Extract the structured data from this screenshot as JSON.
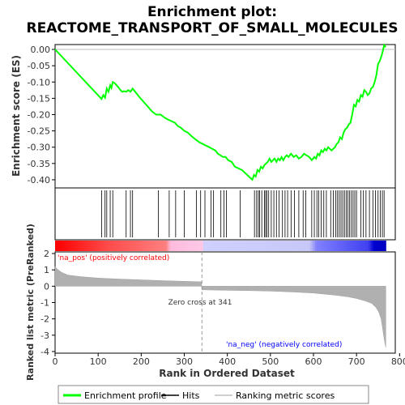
{
  "chart_data": {
    "type": "line",
    "title_line1": "Enrichment plot:",
    "title_line2": "REACTOME_TRANSPORT_OF_SMALL_MOLECULES",
    "top_panel": {
      "ylabel": "Enrichment score (ES)",
      "ylim": [
        -0.425,
        0.015
      ],
      "yticks": [
        "0.00",
        "-0.05",
        "-0.10",
        "-0.15",
        "-0.20",
        "-0.25",
        "-0.30",
        "-0.35",
        "-0.40"
      ],
      "ytick_values": [
        0.0,
        -0.05,
        -0.1,
        -0.15,
        -0.2,
        -0.25,
        -0.3,
        -0.35,
        -0.4
      ],
      "series": {
        "name": "Enrichment profile",
        "color": "#00ff00",
        "x": [
          0,
          108,
          112,
          116,
          120,
          124,
          128,
          131,
          134,
          138,
          143,
          148,
          152,
          156,
          160,
          165,
          170,
          175,
          180,
          186,
          195,
          205,
          215,
          225,
          235,
          245,
          255,
          262,
          270,
          278,
          285,
          292,
          300,
          308,
          316,
          325,
          335,
          343,
          350,
          358,
          365,
          372,
          378,
          384,
          390,
          396,
          402,
          410,
          418,
          426,
          434,
          442,
          450,
          458,
          462,
          466,
          470,
          474,
          478,
          482,
          486,
          490,
          494,
          498,
          502,
          506,
          510,
          514,
          518,
          522,
          526,
          530,
          534,
          538,
          542,
          548,
          554,
          560,
          566,
          572,
          578,
          584,
          590,
          596,
          602,
          606,
          610,
          614,
          618,
          622,
          626,
          630,
          634,
          638,
          642,
          646,
          650,
          654,
          658,
          662,
          666,
          670,
          674,
          678,
          682,
          686,
          690,
          694,
          698,
          702,
          706,
          710,
          714,
          718,
          722,
          726,
          730,
          734,
          738,
          742,
          746,
          750,
          754,
          758,
          762,
          764,
          768
        ],
        "y": [
          0.0,
          -0.152,
          -0.14,
          -0.148,
          -0.12,
          -0.13,
          -0.11,
          -0.118,
          -0.1,
          -0.103,
          -0.11,
          -0.118,
          -0.125,
          -0.13,
          -0.128,
          -0.13,
          -0.125,
          -0.13,
          -0.12,
          -0.13,
          -0.145,
          -0.16,
          -0.175,
          -0.19,
          -0.2,
          -0.2,
          -0.21,
          -0.215,
          -0.22,
          -0.225,
          -0.235,
          -0.24,
          -0.25,
          -0.255,
          -0.265,
          -0.275,
          -0.285,
          -0.29,
          -0.295,
          -0.3,
          -0.305,
          -0.31,
          -0.32,
          -0.325,
          -0.33,
          -0.33,
          -0.34,
          -0.345,
          -0.36,
          -0.365,
          -0.37,
          -0.38,
          -0.39,
          -0.4,
          -0.385,
          -0.39,
          -0.37,
          -0.375,
          -0.36,
          -0.365,
          -0.355,
          -0.35,
          -0.345,
          -0.335,
          -0.345,
          -0.34,
          -0.335,
          -0.345,
          -0.335,
          -0.34,
          -0.33,
          -0.34,
          -0.33,
          -0.325,
          -0.33,
          -0.32,
          -0.33,
          -0.325,
          -0.335,
          -0.33,
          -0.32,
          -0.325,
          -0.33,
          -0.34,
          -0.33,
          -0.335,
          -0.32,
          -0.325,
          -0.31,
          -0.315,
          -0.305,
          -0.31,
          -0.3,
          -0.305,
          -0.31,
          -0.305,
          -0.3,
          -0.29,
          -0.285,
          -0.27,
          -0.275,
          -0.255,
          -0.245,
          -0.24,
          -0.23,
          -0.225,
          -0.2,
          -0.17,
          -0.175,
          -0.155,
          -0.16,
          -0.14,
          -0.145,
          -0.125,
          -0.13,
          -0.14,
          -0.135,
          -0.12,
          -0.115,
          -0.1,
          -0.08,
          -0.045,
          -0.035,
          -0.02,
          0.0,
          0.013,
          0.007
        ]
      },
      "hits": [
        108,
        116,
        120,
        128,
        134,
        165,
        175,
        180,
        240,
        265,
        280,
        300,
        328,
        338,
        348,
        362,
        368,
        385,
        392,
        398,
        430,
        463,
        468,
        472,
        475,
        480,
        486,
        489,
        492,
        496,
        502,
        508,
        514,
        520,
        528,
        534,
        540,
        548,
        556,
        566,
        576,
        582,
        596,
        602,
        608,
        612,
        618,
        624,
        630,
        640,
        646,
        652,
        656,
        660,
        664,
        668,
        672,
        676,
        680,
        684,
        688,
        692,
        696,
        700,
        710,
        716,
        722,
        730,
        738,
        744,
        750,
        755,
        760,
        764
      ]
    },
    "bottom_panel": {
      "xlabel": "Rank in Ordered Dataset",
      "ylabel": "Ranked list metric (PreRanked)",
      "xlim": [
        0,
        790
      ],
      "ylim": [
        -4.1,
        2.1
      ],
      "xticks": [
        "0",
        "100",
        "200",
        "300",
        "400",
        "500",
        "600",
        "700",
        "800"
      ],
      "xtick_values": [
        0,
        100,
        200,
        300,
        400,
        500,
        600,
        700,
        800
      ],
      "yticks": [
        "2",
        "1",
        "0",
        "-1",
        "-2",
        "-3",
        "-4"
      ],
      "ytick_values": [
        2,
        1,
        0,
        -1,
        -2,
        -3,
        -4
      ],
      "metric_x": [
        0,
        5,
        15,
        30,
        60,
        100,
        150,
        200,
        250,
        300,
        340,
        341,
        400,
        450,
        500,
        550,
        600,
        650,
        680,
        700,
        720,
        735,
        745,
        752,
        757,
        760,
        763,
        766,
        768
      ],
      "metric_y": [
        1.2,
        1.05,
        0.85,
        0.68,
        0.58,
        0.5,
        0.44,
        0.39,
        0.34,
        0.3,
        0.27,
        -0.22,
        -0.25,
        -0.27,
        -0.3,
        -0.35,
        -0.42,
        -0.55,
        -0.65,
        -0.75,
        -0.9,
        -1.05,
        -1.3,
        -1.6,
        -2.0,
        -2.5,
        -3.0,
        -3.5,
        -3.75
      ],
      "zero_cross_label": "Zero cross at 341",
      "zero_cross": 341,
      "pos_label": "'na_pos' (positively correlated)",
      "neg_label": "'na_neg' (negatively correlated)",
      "pos_color": "#ff0000",
      "neg_color": "#0000ff"
    },
    "legend": {
      "items": [
        {
          "label": "Enrichment profile",
          "color": "#00ff00"
        },
        {
          "label": "Hits",
          "color": "#000000"
        },
        {
          "label": "Ranking metric scores",
          "color": "#c0c0c0"
        }
      ]
    }
  }
}
